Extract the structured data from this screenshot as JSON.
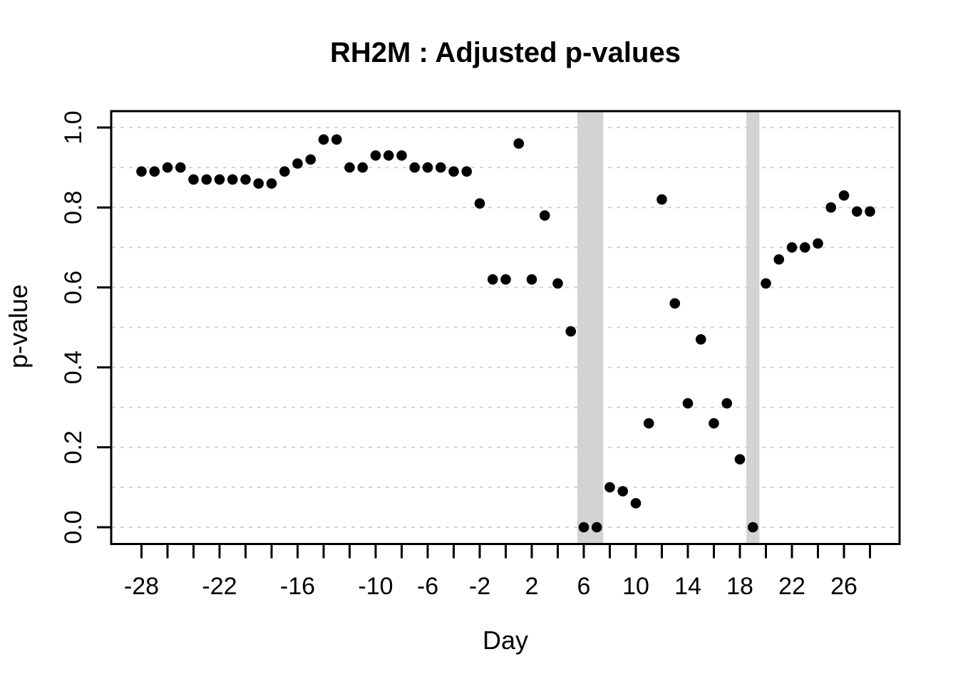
{
  "chart_data": {
    "type": "scatter",
    "title": "RH2M : Adjusted p-values",
    "xlabel": "Day",
    "ylabel": "p-value",
    "xlim": [
      -30,
      30
    ],
    "ylim": [
      0,
      1
    ],
    "grid": "horizontal-dashed",
    "legend": "none",
    "x": [
      -28,
      -27,
      -26,
      -25,
      -24,
      -23,
      -22,
      -21,
      -20,
      -19,
      -18,
      -17,
      -16,
      -15,
      -14,
      -13,
      -12,
      -11,
      -10,
      -9,
      -8,
      -7,
      -6,
      -5,
      -4,
      -3,
      -2,
      -1,
      0,
      1,
      2,
      3,
      4,
      5,
      6,
      7,
      8,
      9,
      10,
      11,
      12,
      13,
      14,
      15,
      16,
      17,
      18,
      19,
      20,
      21,
      22,
      23,
      24,
      25,
      26,
      27,
      28
    ],
    "y": [
      0.89,
      0.89,
      0.9,
      0.9,
      0.87,
      0.87,
      0.87,
      0.87,
      0.87,
      0.86,
      0.86,
      0.89,
      0.91,
      0.92,
      0.97,
      0.97,
      0.9,
      0.9,
      0.93,
      0.93,
      0.93,
      0.9,
      0.9,
      0.9,
      0.89,
      0.89,
      0.81,
      0.62,
      0.62,
      0.96,
      0.62,
      0.78,
      0.61,
      0.49,
      0.0,
      0.0,
      0.1,
      0.09,
      0.06,
      0.26,
      0.82,
      0.56,
      0.31,
      0.47,
      0.26,
      0.31,
      0.17,
      0.0,
      0.61,
      0.67,
      0.7,
      0.7,
      0.71,
      0.8,
      0.83,
      0.79,
      0.79
    ],
    "x_ticks": {
      "min": -28,
      "max": 28,
      "step": 2
    },
    "x_tick_labels": [
      {
        "value": -28,
        "label": "-28"
      },
      {
        "value": -22,
        "label": "-22"
      },
      {
        "value": -16,
        "label": "-16"
      },
      {
        "value": -10,
        "label": "-10"
      },
      {
        "value": -6,
        "label": "-6"
      },
      {
        "value": -2,
        "label": "-2"
      },
      {
        "value": 2,
        "label": "2"
      },
      {
        "value": 6,
        "label": "6"
      },
      {
        "value": 10,
        "label": "10"
      },
      {
        "value": 14,
        "label": "14"
      },
      {
        "value": 18,
        "label": "18"
      },
      {
        "value": 22,
        "label": "22"
      },
      {
        "value": 26,
        "label": "26"
      }
    ],
    "y_ticks": [
      {
        "value": 0.0,
        "label": "0.0"
      },
      {
        "value": 0.2,
        "label": "0.2"
      },
      {
        "value": 0.4,
        "label": "0.4"
      },
      {
        "value": 0.6,
        "label": "0.6"
      },
      {
        "value": 0.8,
        "label": "0.8"
      },
      {
        "value": 1.0,
        "label": "1.0"
      }
    ],
    "gridline_values": [
      0.0,
      0.1,
      0.2,
      0.3,
      0.4,
      0.5,
      0.6,
      0.7,
      0.8,
      0.9,
      1.0
    ],
    "shaded_regions": [
      {
        "x_from": 5.5,
        "x_to": 7.5
      },
      {
        "x_from": 18.5,
        "x_to": 19.5
      }
    ],
    "colors": {
      "point": "#000000",
      "shaded_band": "#d3d3d3",
      "gridline": "#d3d3d3",
      "axis": "#000000",
      "background": "#ffffff"
    }
  }
}
